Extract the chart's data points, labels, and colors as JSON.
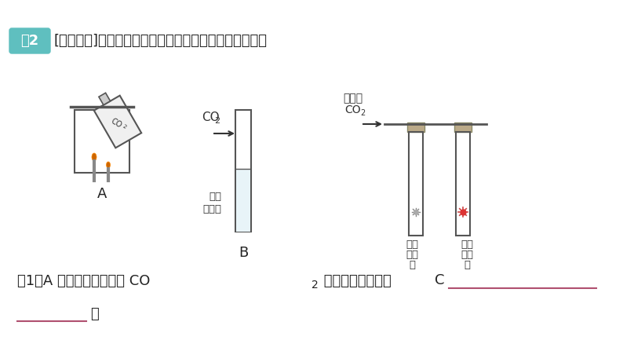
{
  "bg_color": "#ffffff",
  "title_badge_color": "#5fbfbf",
  "title_badge_text": "例2",
  "title_text": "[青海中考]按如图所示装置探究二氧化碳的性质并填空：",
  "title_fontsize": 14,
  "line1_text": "（1）A 中的实验现象说明 CO",
  "line1_sub": "2",
  "line1_text2": " 具有的化学性质是",
  "underline_color": "#b05070",
  "dot_text": "。",
  "line2_underline_color": "#b05070"
}
